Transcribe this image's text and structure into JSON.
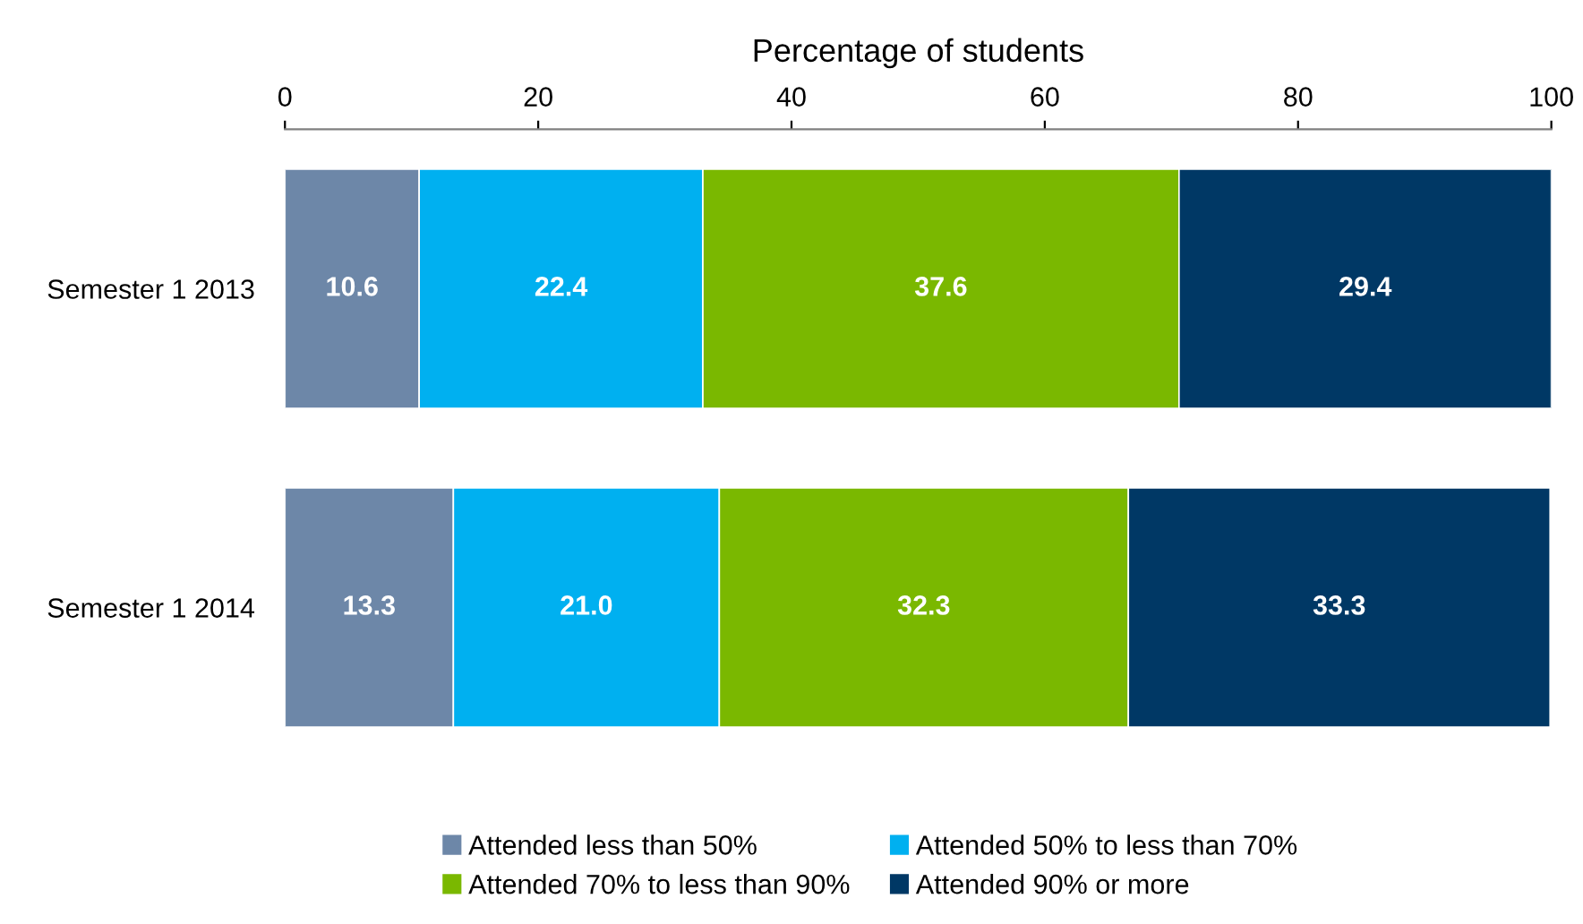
{
  "chart_data": {
    "type": "bar",
    "orientation": "horizontal",
    "stacked": true,
    "xlabel": "Percentage of students",
    "categories": [
      "Semester 1 2013",
      "Semester 1 2014"
    ],
    "xlim": [
      0,
      100
    ],
    "xticks": [
      0,
      20,
      40,
      60,
      80,
      100
    ],
    "grid": false,
    "legend": "bottom",
    "series": [
      {
        "name": "Attended less than 50%",
        "color": "#6d87a8",
        "values": [
          10.6,
          13.3
        ],
        "value_labels": [
          "10.6",
          "13.3"
        ]
      },
      {
        "name": "Attended 50% to less than 70%",
        "color": "#00b0f0",
        "values": [
          22.4,
          21.0
        ],
        "value_labels": [
          "22.4",
          "21.0"
        ]
      },
      {
        "name": "Attended 70% to less than 90%",
        "color": "#7ab800",
        "values": [
          37.6,
          32.3
        ],
        "value_labels": [
          "37.6",
          "32.3"
        ]
      },
      {
        "name": "Attended 90% or more",
        "color": "#003865",
        "values": [
          29.4,
          33.3
        ],
        "value_labels": [
          "29.4",
          "33.3"
        ]
      }
    ]
  }
}
